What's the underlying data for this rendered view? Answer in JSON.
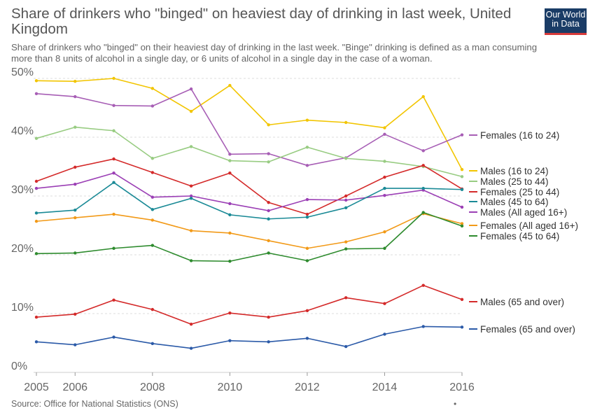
{
  "header": {
    "title": "Share of drinkers who \"binged\" on heaviest day of drinking in last week, United Kingdom",
    "subtitle": "Share of drinkers who \"binged\" on their heaviest day of drinking in the last week. \"Binge\" drinking is defined as a man consuming more than 8 units of alcohol in a single day, or 6 units of alcohol in a single day in the case of a woman.",
    "logo_line1": "Our World",
    "logo_line2": "in Data"
  },
  "footer": {
    "source": "Source: Office for National Statistics (ONS)",
    "note_mark": "•"
  },
  "chart_data": {
    "type": "line",
    "x": [
      2005,
      2006,
      2007,
      2008,
      2009,
      2010,
      2011,
      2012,
      2013,
      2014,
      2015,
      2016
    ],
    "xticks": [
      "2005",
      "2006",
      "2008",
      "2010",
      "2012",
      "2014",
      "2016"
    ],
    "yticks": [
      "0%",
      "10%",
      "20%",
      "30%",
      "40%",
      "50%"
    ],
    "ylim": [
      0,
      50
    ],
    "grid": true,
    "legend_placement": "right",
    "series": [
      {
        "name": "Males (16 to 24)",
        "color": "#f2c500",
        "values": [
          49.6,
          49.5,
          50.0,
          48.3,
          44.4,
          48.8,
          42.1,
          42.9,
          42.5,
          41.6,
          46.9,
          34.5
        ]
      },
      {
        "name": "Females (16 to 24)",
        "color": "#a75eb5",
        "values": [
          47.4,
          46.9,
          45.4,
          45.3,
          48.2,
          37.1,
          37.2,
          35.2,
          36.5,
          40.5,
          37.7,
          40.4
        ]
      },
      {
        "name": "Males (25 to 44)",
        "color": "#98cc82",
        "values": [
          39.8,
          41.7,
          41.1,
          36.4,
          38.4,
          36.0,
          35.8,
          38.3,
          36.4,
          35.9,
          35.0,
          33.3
        ]
      },
      {
        "name": "Females (25 to 44)",
        "color": "#d42a2a",
        "values": [
          32.5,
          34.9,
          36.3,
          34.0,
          31.7,
          33.9,
          28.9,
          26.9,
          30.0,
          33.2,
          35.2,
          31.2
        ]
      },
      {
        "name": "Males (All aged 16+)",
        "color": "#9b3fb5",
        "values": [
          31.3,
          32.0,
          33.9,
          29.8,
          30.0,
          28.7,
          27.5,
          29.4,
          29.3,
          30.1,
          31.0,
          28.1
        ]
      },
      {
        "name": "Males (45 to 64)",
        "color": "#1a8a96",
        "values": [
          27.1,
          27.6,
          32.3,
          27.7,
          29.6,
          26.8,
          26.1,
          26.4,
          28.0,
          31.3,
          31.3,
          31.1
        ]
      },
      {
        "name": "Females (All aged 16+)",
        "color": "#f29a18",
        "values": [
          25.7,
          26.3,
          26.9,
          25.9,
          24.1,
          23.7,
          22.4,
          21.1,
          22.2,
          23.9,
          27.0,
          25.3
        ]
      },
      {
        "name": "Females (45 to 64)",
        "color": "#2e8b2e",
        "values": [
          20.2,
          20.3,
          21.1,
          21.6,
          19.0,
          18.9,
          20.3,
          19.0,
          21.0,
          21.1,
          27.2,
          24.9
        ]
      },
      {
        "name": "Males (65 and over)",
        "color": "#d42a2a",
        "values": [
          9.4,
          9.9,
          12.3,
          10.7,
          8.2,
          10.1,
          9.4,
          10.5,
          12.7,
          11.7,
          14.8,
          12.4
        ]
      },
      {
        "name": "Females (65 and over)",
        "color": "#2b5aa8",
        "values": [
          5.2,
          4.7,
          6.0,
          4.9,
          4.1,
          5.4,
          5.2,
          5.8,
          4.4,
          6.5,
          7.8,
          7.7
        ]
      }
    ]
  }
}
